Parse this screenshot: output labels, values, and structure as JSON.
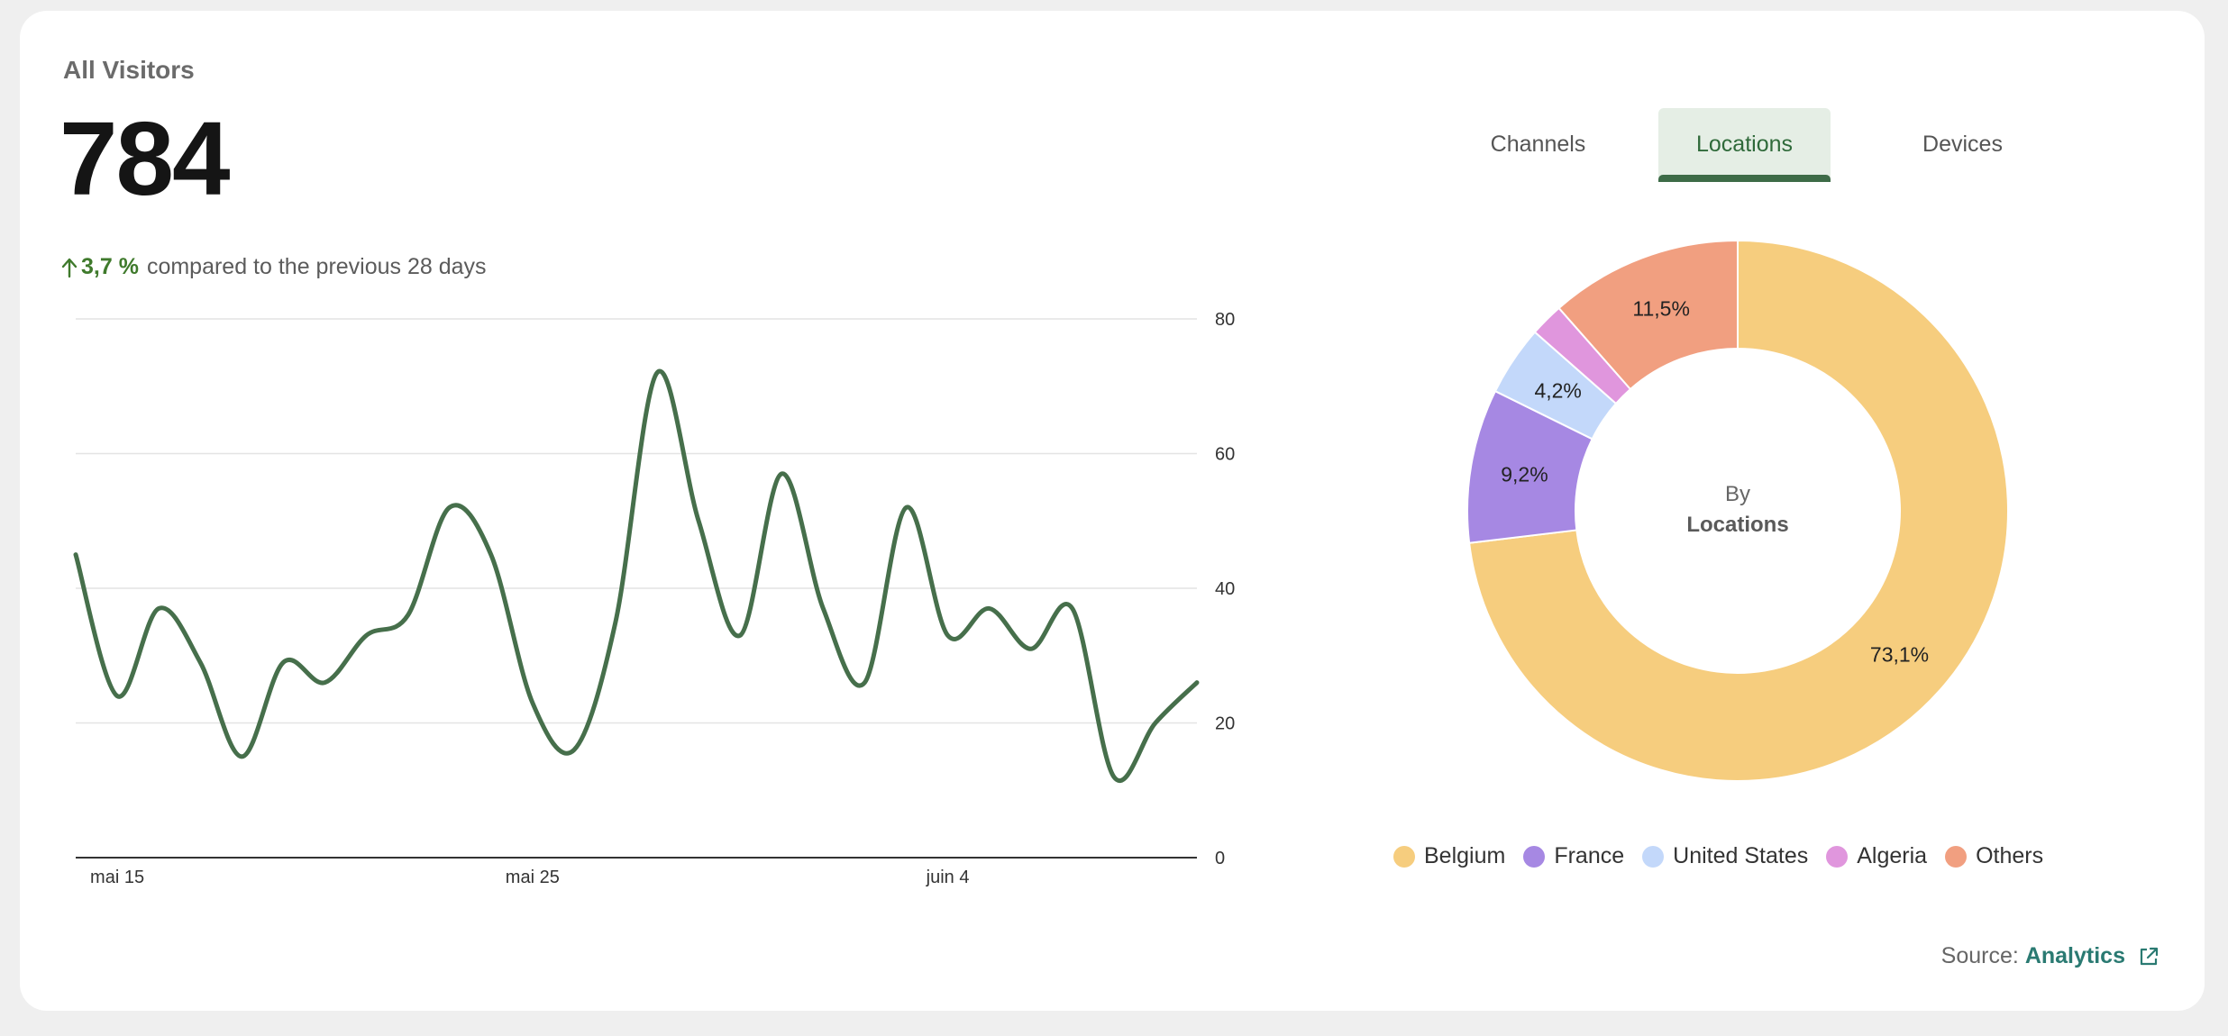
{
  "header": {
    "title": "All Visitors",
    "total": "784",
    "delta_percent": "3,7 %",
    "delta_text": "compared to the previous 28 days"
  },
  "tabs": [
    {
      "label": "Channels",
      "active": false
    },
    {
      "label": "Locations",
      "active": true
    },
    {
      "label": "Devices",
      "active": false
    }
  ],
  "center_label": {
    "line1": "By",
    "line2": "Locations"
  },
  "source": {
    "prefix": "Source:",
    "link": "Analytics"
  },
  "chart_data": [
    {
      "type": "line",
      "title": "",
      "xlabel": "",
      "ylabel": "",
      "ylim": [
        0,
        80
      ],
      "yticks": [
        0,
        20,
        40,
        60,
        80
      ],
      "xticks": [
        {
          "label": "mai 15",
          "x": 1
        },
        {
          "label": "mai 25",
          "x": 11
        },
        {
          "label": "juin 4",
          "x": 21
        }
      ],
      "grid": true,
      "color": "#466f4b",
      "x": [
        0,
        1,
        2,
        3,
        4,
        5,
        6,
        7,
        8,
        9,
        10,
        11,
        12,
        13,
        14,
        15,
        16,
        17,
        18,
        19,
        20,
        21,
        22,
        23,
        24,
        25,
        26,
        27
      ],
      "values": [
        45,
        24,
        37,
        29,
        15,
        29,
        26,
        33,
        36,
        52,
        45,
        23,
        16,
        35,
        72,
        50,
        33,
        57,
        37,
        26,
        52,
        33,
        37,
        31,
        37,
        12,
        20,
        26
      ]
    },
    {
      "type": "pie",
      "variant": "donut",
      "labels": [
        "Belgium",
        "France",
        "United States",
        "Algeria",
        "Others"
      ],
      "values": [
        73.1,
        9.2,
        4.2,
        2.0,
        11.5
      ],
      "display_labels": [
        "73,1%",
        "9,2%",
        "4,2%",
        "",
        "11,5%"
      ],
      "colors": [
        "#f6cd7e",
        "#a688e3",
        "#c3d8fa",
        "#e096dd",
        "#f19f80"
      ]
    }
  ]
}
